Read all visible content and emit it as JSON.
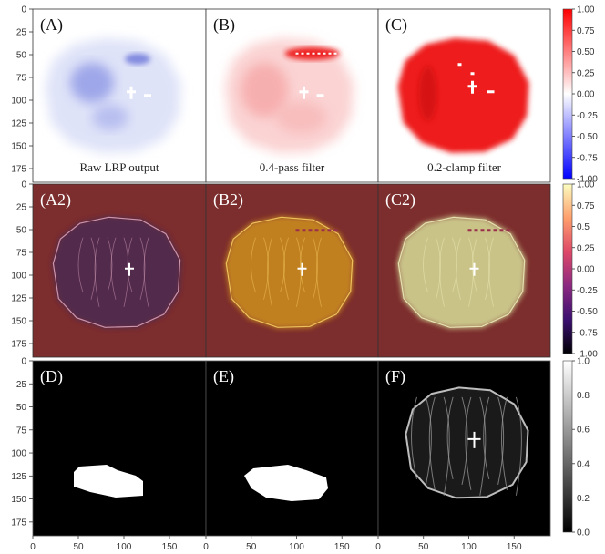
{
  "rows": [
    {
      "panels": [
        {
          "label": "(A)",
          "caption": "Raw LRP output",
          "style": "raw"
        },
        {
          "label": "(B)",
          "caption": "0.4-pass filter",
          "style": "pass"
        },
        {
          "label": "(C)",
          "caption": "0.2-clamp filter",
          "style": "clamp"
        }
      ],
      "colorbar": {
        "name": "seismic",
        "colors": [
          "#0000ff",
          "#ffffff",
          "#ff0000"
        ],
        "ticks": [
          "1.00",
          "0.75",
          "0.50",
          "0.25",
          "0.00",
          "-0.25",
          "-0.50",
          "-0.75",
          "-1.00"
        ],
        "tick_values": [
          1,
          0.75,
          0.5,
          0.25,
          0,
          -0.25,
          -0.5,
          -0.75,
          -1
        ],
        "range": [
          -1,
          1
        ]
      }
    },
    {
      "panels": [
        {
          "label": "(A2)",
          "caption": "",
          "style": "ov-raw"
        },
        {
          "label": "(B2)",
          "caption": "",
          "style": "ov-pass"
        },
        {
          "label": "(C2)",
          "caption": "",
          "style": "ov-clamp"
        }
      ],
      "colorbar": {
        "name": "magma",
        "colors": [
          "#000004",
          "#3b0f70",
          "#8c2981",
          "#de4968",
          "#fe9f6d",
          "#fcfdbf"
        ],
        "ticks": [
          "1.00",
          "0.75",
          "0.5",
          "0.25",
          "0.00",
          "-0.25",
          "-0.50",
          "-0.75",
          "-1.00"
        ],
        "tick_values": [
          1,
          0.75,
          0.5,
          0.25,
          0,
          -0.25,
          -0.5,
          -0.75,
          -1
        ],
        "range": [
          -1,
          1
        ]
      }
    },
    {
      "panels": [
        {
          "label": "(D)",
          "caption": "",
          "style": "mask1"
        },
        {
          "label": "(E)",
          "caption": "",
          "style": "mask2"
        },
        {
          "label": "(F)",
          "caption": "",
          "style": "mri"
        }
      ],
      "colorbar": {
        "name": "gray",
        "colors": [
          "#000000",
          "#ffffff"
        ],
        "ticks": [
          "1.0",
          "0.8",
          "0.6",
          "0.4",
          "0.2",
          "0.0"
        ],
        "tick_values": [
          1,
          0.8,
          0.6,
          0.4,
          0.2,
          0
        ],
        "range": [
          0,
          1
        ]
      }
    }
  ],
  "y_ticks": [
    "0",
    "25",
    "50",
    "75",
    "100",
    "125",
    "150",
    "175"
  ],
  "x_ticks": [
    "0",
    "50",
    "100",
    "150"
  ]
}
